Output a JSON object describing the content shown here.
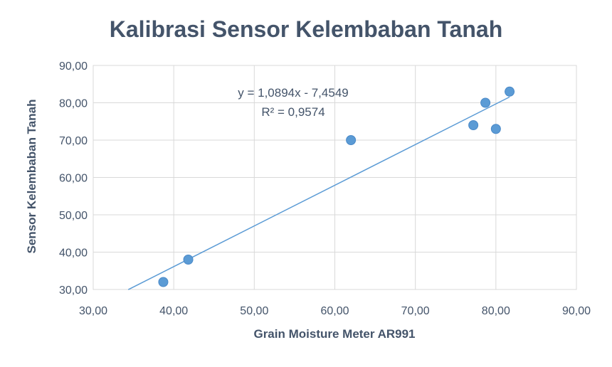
{
  "chart_data": {
    "type": "scatter",
    "title": "Kalibrasi Sensor Kelembaban Tanah",
    "xlabel": "Grain Moisture Meter AR991",
    "ylabel": "Sensor Kelembaban Tanah",
    "xlim": [
      30,
      90
    ],
    "ylim": [
      30,
      90
    ],
    "x_ticks": [
      "30,00",
      "40,00",
      "50,00",
      "60,00",
      "70,00",
      "80,00",
      "90,00"
    ],
    "y_ticks": [
      "30,00",
      "40,00",
      "50,00",
      "60,00",
      "70,00",
      "80,00",
      "90,00"
    ],
    "grid": true,
    "series": [
      {
        "points": [
          {
            "x": 38.7,
            "y": 32.0
          },
          {
            "x": 41.8,
            "y": 38.0
          },
          {
            "x": 62.0,
            "y": 70.0
          },
          {
            "x": 77.2,
            "y": 74.0
          },
          {
            "x": 78.7,
            "y": 80.0
          },
          {
            "x": 80.0,
            "y": 73.0
          },
          {
            "x": 81.7,
            "y": 83.0
          }
        ],
        "color": "#5b9bd5"
      }
    ],
    "trendline": {
      "slope": 1.0894,
      "intercept": -7.4549,
      "x_range": [
        34.35,
        81.7
      ],
      "color": "#5b9bd5",
      "equation": "y = 1,0894x - 7,4549",
      "r_squared": "R² = 0,9574"
    },
    "gridline_color": "#d9d9d9",
    "text_color": "#44546a"
  }
}
